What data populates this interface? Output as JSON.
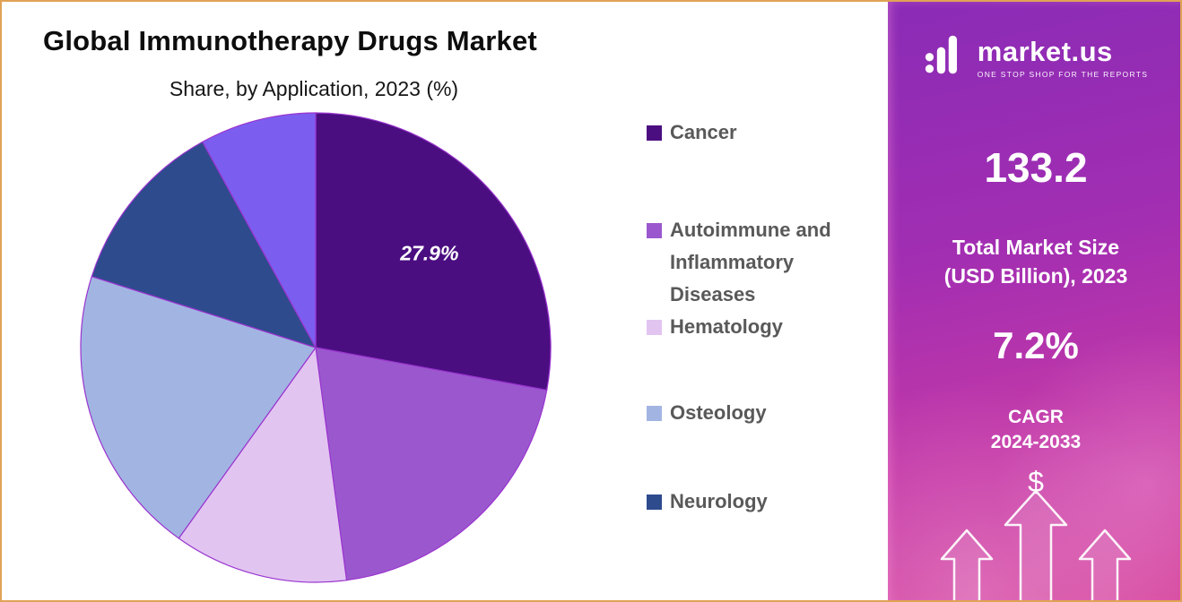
{
  "header": {
    "title": "Global Immunotherapy Drugs Market",
    "subtitle": "Share, by Application, 2023 (%)"
  },
  "chart_data": {
    "type": "pie",
    "title": "Global Immunotherapy Drugs Market",
    "subtitle": "Share, by Application, 2023 (%)",
    "unit": "percent",
    "start_angle_deg": 0,
    "direction": "clockwise",
    "legend_position": "right",
    "slices": [
      {
        "label": "Cancer",
        "value": 27.9,
        "color": "#4b0e81",
        "data_label": "27.9%"
      },
      {
        "label": "Autoimmune and Inflammatory Diseases",
        "value": 20.0,
        "color": "#9b58ce"
      },
      {
        "label": "Hematology",
        "value": 12.0,
        "color": "#e2c4f1"
      },
      {
        "label": "Osteology",
        "value": 20.0,
        "color": "#a2b5e2"
      },
      {
        "label": "Neurology",
        "value": 12.1,
        "color": "#2e4b8e"
      },
      {
        "label": "",
        "value": 8.0,
        "color": "#7b5ef0"
      }
    ],
    "legend": [
      "Cancer",
      "Autoimmune and Inflammatory Diseases",
      "Hematology",
      "Osteology",
      "Neurology"
    ],
    "annotations": [
      {
        "slice": "Cancer",
        "text": "27.9%"
      }
    ]
  },
  "sidebar": {
    "brand": "market.us",
    "tagline": "ONE STOP SHOP FOR THE REPORTS",
    "market_size_value": "133.2",
    "market_size_label_1": "Total Market Size",
    "market_size_label_2": "(USD Billion), 2023",
    "cagr_value": "7.2%",
    "cagr_label_1": "CAGR",
    "cagr_label_2": "2024-2033",
    "currency_symbol": "$"
  },
  "colors": {
    "frame_border": "#e0a355",
    "panel_gradient_top": "#8a2bb6",
    "panel_gradient_bottom": "#d6479d",
    "legend_text": "#595959",
    "pie_stroke": "#9a35cf",
    "data_label_text": "#ffffff"
  }
}
